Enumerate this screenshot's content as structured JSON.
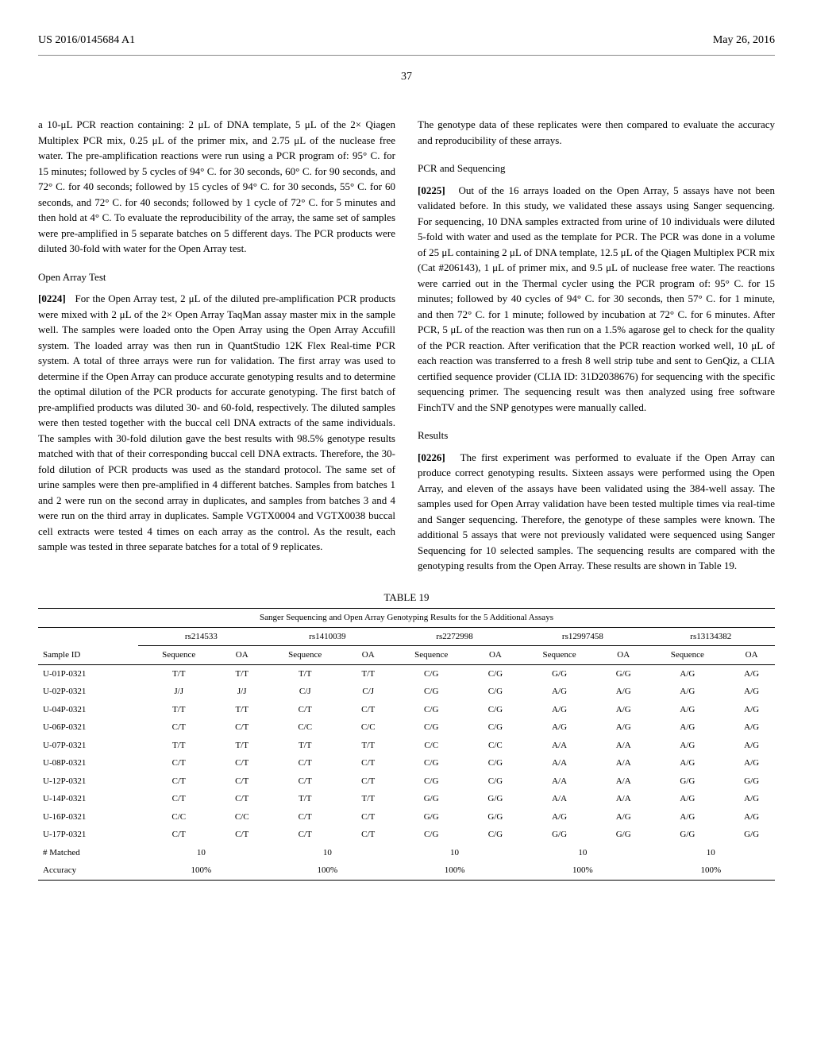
{
  "header": {
    "pub_number": "US 2016/0145684 A1",
    "pub_date": "May 26, 2016",
    "page_number": "37"
  },
  "left_column": {
    "para1": "a 10-μL PCR reaction containing: 2 μL of DNA template, 5 μL of the 2× Qiagen Multiplex PCR mix, 0.25 μL of the primer mix, and 2.75 μL of the nuclease free water. The pre-amplification reactions were run using a PCR program of: 95° C. for 15 minutes; followed by 5 cycles of 94° C. for 30 seconds, 60° C. for 90 seconds, and 72° C. for 40 seconds; followed by 15 cycles of 94° C. for 30 seconds, 55° C. for 60 seconds, and 72° C. for 40 seconds; followed by 1 cycle of 72° C. for 5 minutes and then hold at 4° C. To evaluate the reproducibility of the array, the same set of samples were pre-amplified in 5 separate batches on 5 different days. The PCR products were diluted 30-fold with water for the Open Array test.",
    "heading1": "Open Array Test",
    "para2_num": "[0224]",
    "para2": "For the Open Array test, 2 μL of the diluted pre-amplification PCR products were mixed with 2 μL of the 2× Open Array TaqMan assay master mix in the sample well. The samples were loaded onto the Open Array using the Open Array Accufill system. The loaded array was then run in QuantStudio 12K Flex Real-time PCR system. A total of three arrays were run for validation. The first array was used to determine if the Open Array can produce accurate genotyping results and to determine the optimal dilution of the PCR products for accurate genotyping. The first batch of pre-amplified products was diluted 30- and 60-fold, respectively. The diluted samples were then tested together with the buccal cell DNA extracts of the same individuals. The samples with 30-fold dilution gave the best results with 98.5% genotype results matched with that of their corresponding buccal cell DNA extracts. Therefore, the 30-fold dilution of PCR products was used as the standard protocol. The same set of urine samples were then pre-amplified in 4 different batches. Samples from batches 1 and 2 were run on the second array in duplicates, and samples from batches 3 and 4 were run on the third array in duplicates. Sample VGTX0004 and VGTX0038 buccal cell extracts were tested 4 times on each array as the control. As the result, each sample was tested in three separate batches for a total of 9 replicates."
  },
  "right_column": {
    "para1": "The genotype data of these replicates were then compared to evaluate the accuracy and reproducibility of these arrays.",
    "heading1": "PCR and Sequencing",
    "para2_num": "[0225]",
    "para2": "Out of the 16 arrays loaded on the Open Array, 5 assays have not been validated before. In this study, we validated these assays using Sanger sequencing. For sequencing, 10 DNA samples extracted from urine of 10 individuals were diluted 5-fold with water and used as the template for PCR. The PCR was done in a volume of 25 μL containing 2 μL of DNA template, 12.5 μL of the Qiagen Multiplex PCR mix (Cat #206143), 1 μL of primer mix, and 9.5 μL of nuclease free water. The reactions were carried out in the Thermal cycler using the PCR program of: 95° C. for 15 minutes; followed by 40 cycles of 94° C. for 30 seconds, then 57° C. for 1 minute, and then 72° C. for 1 minute; followed by incubation at 72° C. for 6 minutes. After PCR, 5 μL of the reaction was then run on a 1.5% agarose gel to check for the quality of the PCR reaction. After verification that the PCR reaction worked well, 10 μL of each reaction was transferred to a fresh 8 well strip tube and sent to GenQiz, a CLIA certified sequence provider (CLIA ID: 31D2038676) for sequencing with the specific sequencing primer. The sequencing result was then analyzed using free software FinchTV and the SNP genotypes were manually called.",
    "heading2": "Results",
    "para3_num": "[0226]",
    "para3": "The first experiment was performed to evaluate if the Open Array can produce correct genotyping results. Sixteen assays were performed using the Open Array, and eleven of the assays have been validated using the 384-well assay. The samples used for Open Array validation have been tested multiple times via real-time and Sanger sequencing. Therefore, the genotype of these samples were known. The additional 5 assays that were not previously validated were sequenced using Sanger Sequencing for 10 selected samples. The sequencing results are compared with the genotyping results from the Open Array. These results are shown in Table 19."
  },
  "table": {
    "label": "TABLE 19",
    "title": "Sanger Sequencing and Open Array Genotyping Results for the 5 Additional Assays",
    "assays": [
      "rs214533",
      "rs1410039",
      "rs2272998",
      "rs12997458",
      "rs13134382"
    ],
    "sub_headers": [
      "Sequence",
      "OA"
    ],
    "sample_label": "Sample ID",
    "rows": [
      {
        "id": "U-01P-0321",
        "vals": [
          "T/T",
          "T/T",
          "T/T",
          "T/T",
          "C/G",
          "C/G",
          "G/G",
          "G/G",
          "A/G",
          "A/G"
        ]
      },
      {
        "id": "U-02P-0321",
        "vals": [
          "J/J",
          "J/J",
          "C/J",
          "C/J",
          "C/G",
          "C/G",
          "A/G",
          "A/G",
          "A/G",
          "A/G"
        ]
      },
      {
        "id": "U-04P-0321",
        "vals": [
          "T/T",
          "T/T",
          "C/T",
          "C/T",
          "C/G",
          "C/G",
          "A/G",
          "A/G",
          "A/G",
          "A/G"
        ]
      },
      {
        "id": "U-06P-0321",
        "vals": [
          "C/T",
          "C/T",
          "C/C",
          "C/C",
          "C/G",
          "C/G",
          "A/G",
          "A/G",
          "A/G",
          "A/G"
        ]
      },
      {
        "id": "U-07P-0321",
        "vals": [
          "T/T",
          "T/T",
          "T/T",
          "T/T",
          "C/C",
          "C/C",
          "A/A",
          "A/A",
          "A/G",
          "A/G"
        ]
      },
      {
        "id": "U-08P-0321",
        "vals": [
          "C/T",
          "C/T",
          "C/T",
          "C/T",
          "C/G",
          "C/G",
          "A/A",
          "A/A",
          "A/G",
          "A/G"
        ]
      },
      {
        "id": "U-12P-0321",
        "vals": [
          "C/T",
          "C/T",
          "C/T",
          "C/T",
          "C/G",
          "C/G",
          "A/A",
          "A/A",
          "G/G",
          "G/G"
        ]
      },
      {
        "id": "U-14P-0321",
        "vals": [
          "C/T",
          "C/T",
          "T/T",
          "T/T",
          "G/G",
          "G/G",
          "A/A",
          "A/A",
          "A/G",
          "A/G"
        ]
      },
      {
        "id": "U-16P-0321",
        "vals": [
          "C/C",
          "C/C",
          "C/T",
          "C/T",
          "G/G",
          "G/G",
          "A/G",
          "A/G",
          "A/G",
          "A/G"
        ]
      },
      {
        "id": "U-17P-0321",
        "vals": [
          "C/T",
          "C/T",
          "C/T",
          "C/T",
          "C/G",
          "C/G",
          "G/G",
          "G/G",
          "G/G",
          "G/G"
        ]
      }
    ],
    "matched_label": "# Matched",
    "matched_vals": [
      "10",
      "10",
      "10",
      "10",
      "10"
    ],
    "accuracy_label": "Accuracy",
    "accuracy_vals": [
      "100%",
      "100%",
      "100%",
      "100%",
      "100%"
    ]
  }
}
